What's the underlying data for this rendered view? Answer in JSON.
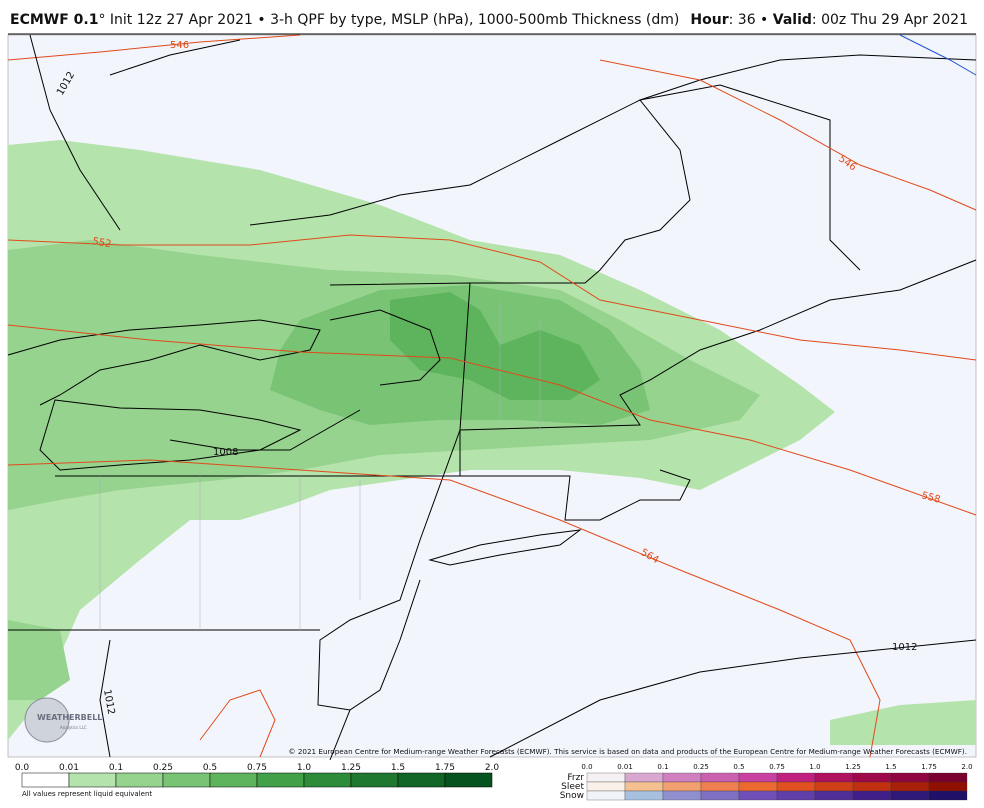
{
  "header": {
    "model": "ECMWF 0.1",
    "degree": "°",
    "description": " Init 12z 27 Apr 2021 • 3-h QPF by type, MSLP (hPa), 1000-500mb Thickness (dm)",
    "hour_label": "Hour",
    "hour_value": ": 36 • ",
    "valid_label": "Valid",
    "valid_value": ": 00z Thu 29 Apr 2021"
  },
  "map": {
    "contour_labels": [
      "546",
      "1012",
      "546",
      "552",
      "1008",
      "558",
      "564",
      "1012",
      "1012"
    ],
    "logo": "WEATHERBELL",
    "logo_sub": "Analytics LLC",
    "copyright": "© 2021 European Centre for Medium-range Weather Forecasts (ECMWF). This service is based on data and products of the European Centre for Medium-range Weather Forecasts (ECMWF)."
  },
  "legend": {
    "ticks": [
      "0.0",
      "0.01",
      "0.1",
      "0.25",
      "0.5",
      "0.75",
      "1.0",
      "1.25",
      "1.5",
      "1.75",
      "2.0"
    ],
    "note": "All values represent liquid equivalent",
    "type_ticks": [
      "0.0",
      "0.01",
      "0.1",
      "0.25",
      "0.5",
      "0.75",
      "1.0",
      "1.25",
      "1.5",
      "1.75",
      "2.0"
    ],
    "types": [
      "Frzr",
      "Sleet",
      "Snow"
    ]
  }
}
